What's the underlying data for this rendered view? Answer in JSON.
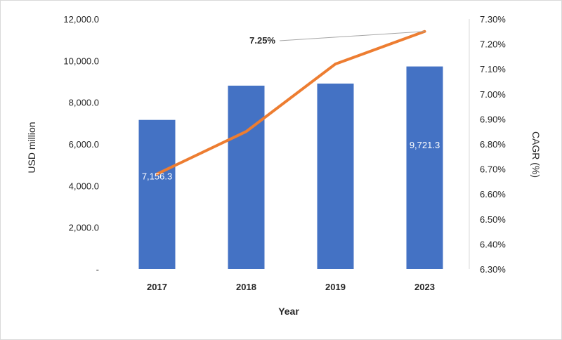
{
  "chart_data": {
    "type": "bar",
    "categories": [
      "2017",
      "2018",
      "2019",
      "2023"
    ],
    "series": [
      {
        "values": [
          7156.3,
          8800.0,
          8900.0,
          9721.3
        ],
        "color": "#4472c4",
        "axis": "left",
        "data_labels": [
          "7,156.3",
          "",
          "",
          "9,721.3"
        ]
      },
      {
        "type": "line",
        "values": [
          6.68,
          6.85,
          7.12,
          7.25
        ],
        "color": "#ed7d31",
        "axis": "right"
      }
    ],
    "xlabel": "Year",
    "ylabel": "USD million",
    "y2label": "CAGR (%)",
    "ylim": [
      0,
      12000
    ],
    "y2lim": [
      6.3,
      7.3
    ],
    "yticks": [
      "-",
      "2,000.0",
      "4,000.0",
      "6,000.0",
      "8,000.0",
      "10,000.0",
      "12,000.0"
    ],
    "y2ticks": [
      "6.30%",
      "6.40%",
      "6.50%",
      "6.60%",
      "6.70%",
      "6.80%",
      "6.90%",
      "7.00%",
      "7.10%",
      "7.20%",
      "7.30%"
    ],
    "annotation": {
      "text": "7.25%",
      "points_to_index": 3
    },
    "grid": false,
    "legend": "none"
  }
}
